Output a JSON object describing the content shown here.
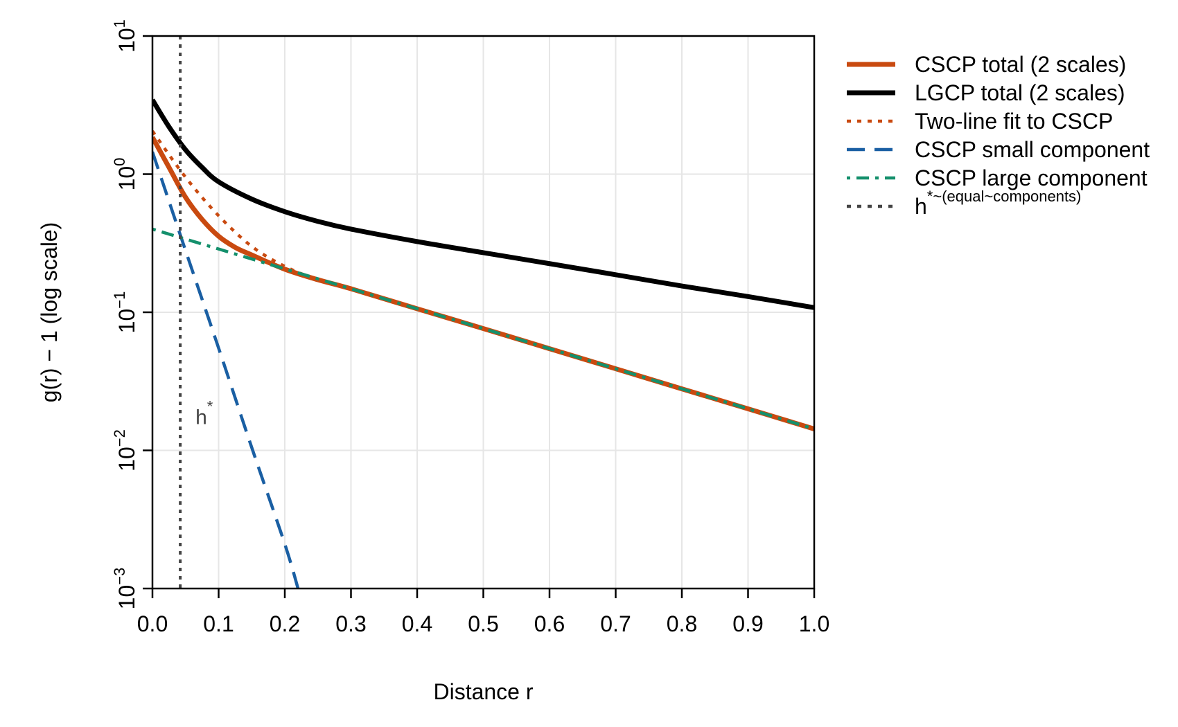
{
  "chart_data": {
    "type": "line",
    "title": "",
    "xlabel": "Distance r",
    "ylabel": "g(r) − 1 (log scale)",
    "xlim": [
      0,
      1
    ],
    "ylim": [
      0.001,
      10
    ],
    "yscale": "log",
    "grid": true,
    "legend_position": "right",
    "x_ticks": [
      "0.0",
      "0.1",
      "0.2",
      "0.3",
      "0.4",
      "0.5",
      "0.6",
      "0.7",
      "0.8",
      "0.9",
      "1.0"
    ],
    "y_ticks": [
      {
        "base": "10",
        "exp": "−3",
        "value": 0.001
      },
      {
        "base": "10",
        "exp": "−2",
        "value": 0.01
      },
      {
        "base": "10",
        "exp": "−1",
        "value": 0.1
      },
      {
        "base": "10",
        "exp": "0",
        "value": 1
      },
      {
        "base": "10",
        "exp": "1",
        "value": 10
      }
    ],
    "series": [
      {
        "name": "CSCP total (2 scales)",
        "color": "#c94a10",
        "style": "solid-thick",
        "x": [
          0.0,
          0.025,
          0.05,
          0.075,
          0.1,
          0.125,
          0.15,
          0.2,
          0.25,
          0.3,
          0.4,
          0.5,
          0.6,
          0.7,
          0.8,
          0.9,
          1.0
        ],
        "y": [
          1.85,
          1.12,
          0.68,
          0.47,
          0.355,
          0.295,
          0.26,
          0.205,
          0.172,
          0.148,
          0.106,
          0.0762,
          0.0545,
          0.039,
          0.0279,
          0.02,
          0.0143
        ]
      },
      {
        "name": "LGCP total (2 scales)",
        "color": "#000000",
        "style": "solid-thick",
        "x": [
          0.0,
          0.025,
          0.05,
          0.075,
          0.1,
          0.15,
          0.2,
          0.25,
          0.3,
          0.4,
          0.5,
          0.6,
          0.7,
          0.8,
          0.9,
          1.0
        ],
        "y": [
          3.45,
          2.2,
          1.5,
          1.12,
          0.88,
          0.66,
          0.535,
          0.455,
          0.4,
          0.325,
          0.27,
          0.225,
          0.187,
          0.155,
          0.13,
          0.108
        ]
      },
      {
        "name": "Two-line fit to CSCP",
        "color": "#c94a10",
        "style": "dotted",
        "x": [
          0.0,
          0.05,
          0.1,
          0.15,
          0.2,
          0.25,
          0.3,
          0.4,
          0.5,
          0.6,
          0.7,
          0.8,
          0.9,
          1.0
        ],
        "y": [
          2.05,
          0.95,
          0.5,
          0.3,
          0.215,
          0.172,
          0.148,
          0.106,
          0.0762,
          0.0545,
          0.039,
          0.0279,
          0.02,
          0.0143
        ]
      },
      {
        "name": "CSCP small component",
        "color": "#1a5fa3",
        "style": "dashed",
        "x": [
          0.0,
          0.05,
          0.1,
          0.15,
          0.2,
          0.22
        ],
        "y": [
          1.45,
          0.28,
          0.055,
          0.0105,
          0.0021,
          0.001
        ]
      },
      {
        "name": "CSCP large component",
        "color": "#14906c",
        "style": "dotdash",
        "x": [
          0.0,
          0.1,
          0.2,
          0.3,
          0.4,
          0.5,
          0.6,
          0.7,
          0.8,
          0.9,
          1.0
        ],
        "y": [
          0.4,
          0.287,
          0.206,
          0.148,
          0.106,
          0.0762,
          0.0545,
          0.039,
          0.0279,
          0.02,
          0.0143
        ]
      },
      {
        "name": "h*~(equal~components)",
        "color": "#444444",
        "style": "vline-dotted",
        "x_value": 0.042
      }
    ],
    "annotations": [
      {
        "text": "h",
        "sup": "*",
        "x": 0.065,
        "y": 0.0155
      }
    ],
    "legend": [
      {
        "label": "CSCP total (2 scales)",
        "color": "#c94a10",
        "style": "solid-thick"
      },
      {
        "label": "LGCP total (2 scales)",
        "color": "#000000",
        "style": "solid-thick"
      },
      {
        "label": "Two-line fit to CSCP",
        "color": "#c94a10",
        "style": "dotted"
      },
      {
        "label": "CSCP small component",
        "color": "#1a5fa3",
        "style": "dashed"
      },
      {
        "label": "CSCP large component",
        "color": "#14906c",
        "style": "dotdash"
      },
      {
        "label": "h",
        "sup": "*~(equal~components)",
        "color": "#444444",
        "style": "dotted"
      }
    ]
  }
}
